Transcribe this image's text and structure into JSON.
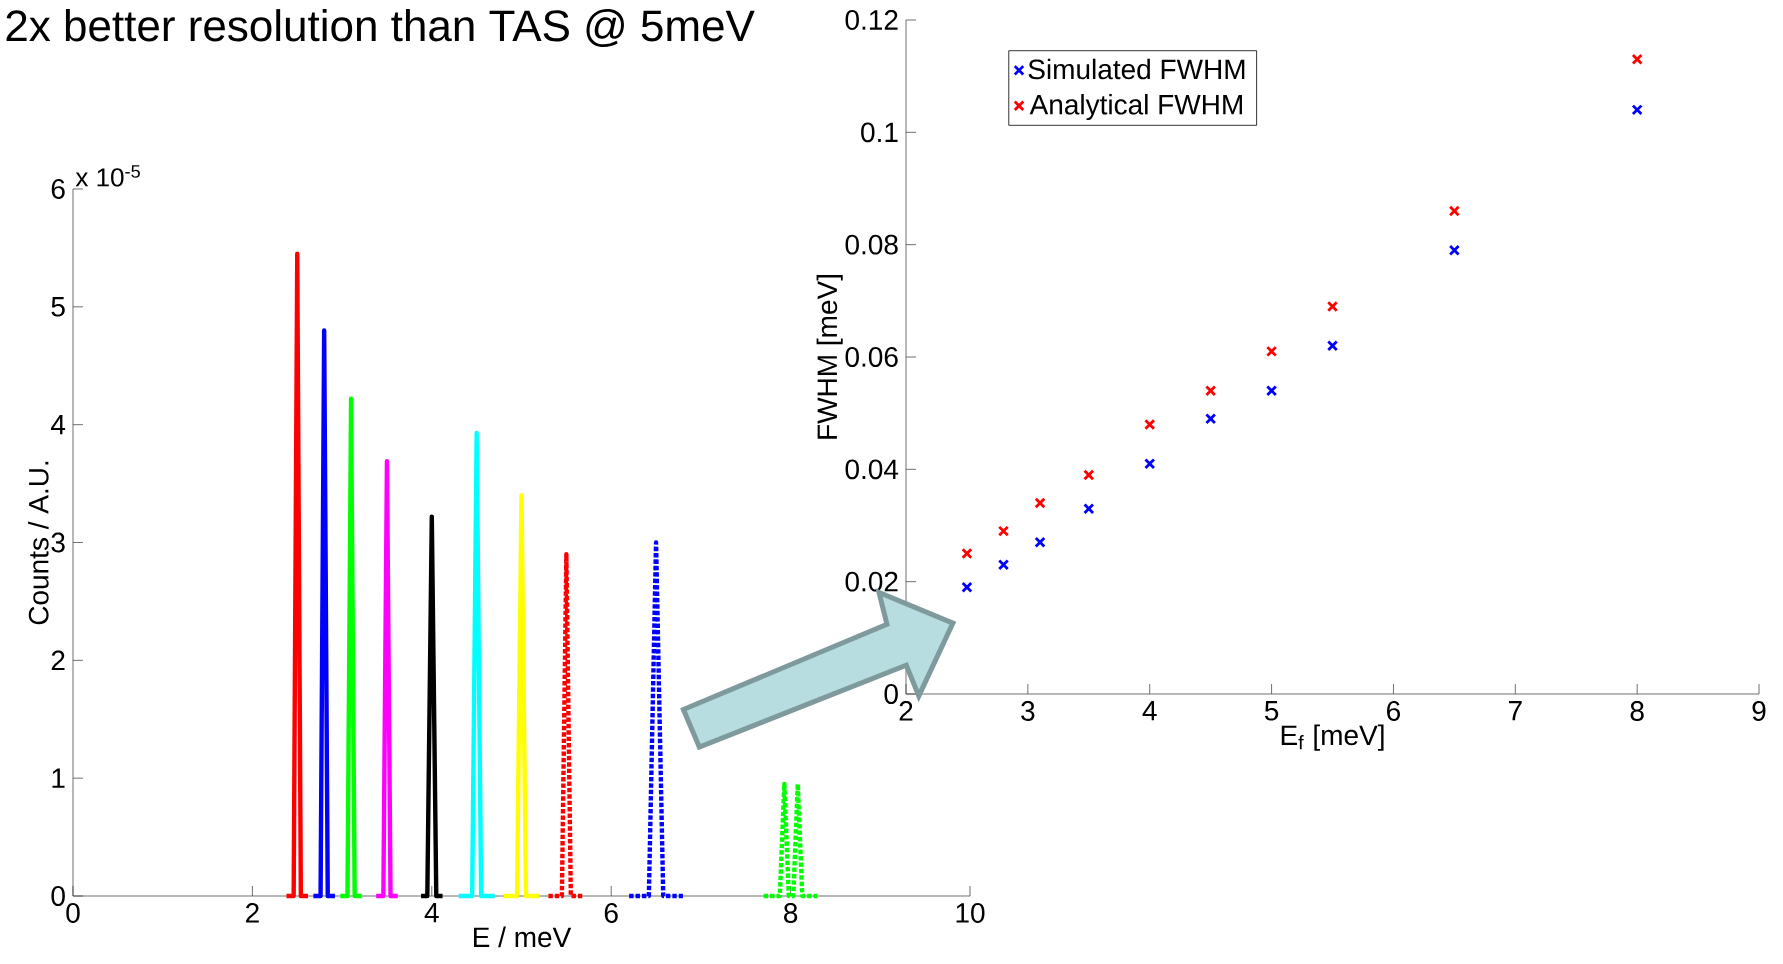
{
  "chart_data": [
    {
      "type": "line",
      "title": "2x better resolution than TAS @ 5meV",
      "xlabel": "E / meV",
      "ylabel": "Counts / A.U.",
      "annotations": [
        "x 10$^{-5}$"
      ],
      "xlim": [
        0,
        10
      ],
      "xticks": [
        0,
        2,
        4,
        6,
        8,
        10
      ],
      "ylim": [
        0,
        6
      ],
      "yticks": [
        0,
        1,
        2,
        3,
        4,
        5,
        6
      ],
      "series": [
        {
          "color": "#ff0000",
          "line_style": "solid",
          "x": [
            2.38,
            2.46,
            2.5,
            2.54,
            2.62
          ],
          "values": [
            0,
            0,
            5.45,
            0,
            0
          ]
        },
        {
          "color": "#0000ff",
          "line_style": "solid",
          "x": [
            2.68,
            2.76,
            2.8,
            2.84,
            2.92
          ],
          "values": [
            0,
            0,
            4.8,
            0,
            0
          ]
        },
        {
          "color": "#00ff00",
          "line_style": "solid",
          "x": [
            2.98,
            3.06,
            3.1,
            3.14,
            3.22
          ],
          "values": [
            0,
            0,
            4.22,
            0,
            0
          ]
        },
        {
          "color": "#ff00ff",
          "line_style": "solid",
          "x": [
            3.38,
            3.46,
            3.5,
            3.54,
            3.62
          ],
          "values": [
            0,
            0,
            3.69,
            0,
            0
          ]
        },
        {
          "color": "#000000",
          "line_style": "solid",
          "x": [
            3.88,
            3.95,
            4.0,
            4.05,
            4.12
          ],
          "values": [
            0,
            0,
            3.22,
            0,
            0
          ]
        },
        {
          "color": "#00ffff",
          "line_style": "solid",
          "x": [
            4.3,
            4.45,
            4.5,
            4.55,
            4.7
          ],
          "values": [
            0,
            0,
            3.93,
            0,
            0
          ]
        },
        {
          "color": "#ffff00",
          "line_style": "solid",
          "x": [
            4.8,
            4.95,
            5.0,
            5.05,
            5.2
          ],
          "values": [
            0,
            0,
            3.4,
            0,
            0
          ]
        },
        {
          "color": "#ff0000",
          "line_style": "dotted",
          "x": [
            5.3,
            5.45,
            5.5,
            5.55,
            5.7
          ],
          "values": [
            0,
            0,
            2.9,
            0,
            0
          ]
        },
        {
          "color": "#0000ff",
          "line_style": "dotted",
          "x": [
            6.2,
            6.42,
            6.5,
            6.58,
            6.8
          ],
          "values": [
            0,
            0,
            3.0,
            0,
            0
          ]
        },
        {
          "color": "#00ff00",
          "line_style": "dotted",
          "x": [
            7.7,
            7.88,
            7.93,
            7.98,
            8.03,
            8.08,
            8.13,
            8.3
          ],
          "values": [
            0,
            0,
            0.95,
            0,
            0,
            0.95,
            0,
            0
          ]
        }
      ]
    },
    {
      "type": "scatter",
      "xlabel": "E$_{f}$ [meV]",
      "ylabel": "FWHM [meV]",
      "xlim": [
        2,
        9
      ],
      "xticks": [
        2,
        3,
        4,
        5,
        6,
        7,
        8,
        9
      ],
      "ylim": [
        0,
        0.12
      ],
      "yticks": [
        0,
        0.02,
        0.04,
        0.06,
        0.08,
        0.1,
        0.12
      ],
      "legend": "top left",
      "marker": "cross",
      "x": [
        2.5,
        2.8,
        3.1,
        3.5,
        4,
        4.5,
        5,
        5.5,
        6.5,
        8
      ],
      "series": [
        {
          "name": "Simulated FWHM",
          "color": "#0000ff",
          "values": [
            0.019,
            0.023,
            0.027,
            0.033,
            0.041,
            0.049,
            0.054,
            0.062,
            0.079,
            0.104
          ]
        },
        {
          "name": "Analytical FWHM",
          "color": "#ff0000",
          "values": [
            0.025,
            0.029,
            0.034,
            0.039,
            0.048,
            0.054,
            0.061,
            0.069,
            0.086,
            0.113
          ]
        }
      ]
    }
  ]
}
